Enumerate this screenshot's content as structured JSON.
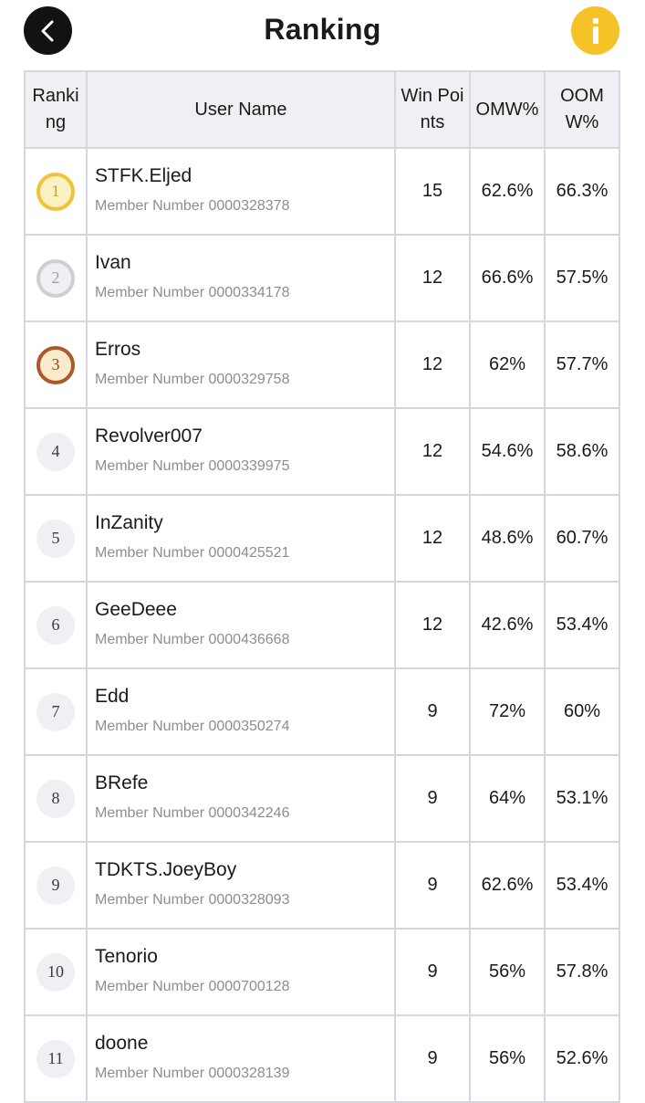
{
  "header": {
    "title": "Ranking",
    "back_icon": "chevron-left-icon",
    "info_icon": "info-icon",
    "info_color": "#f5c227"
  },
  "table": {
    "columns": [
      "Ranking",
      "User Name",
      "Win Points",
      "OMW%",
      "OOMW%"
    ],
    "rows": [
      {
        "rank": "1",
        "name": "STFK.Eljed",
        "member": "Member Number 0000328378",
        "win_points": "15",
        "omw": "62.6%",
        "oomw": "66.3%",
        "medal": "gold"
      },
      {
        "rank": "2",
        "name": "Ivan",
        "member": "Member Number 0000334178",
        "win_points": "12",
        "omw": "66.6%",
        "oomw": "57.5%",
        "medal": "silver"
      },
      {
        "rank": "3",
        "name": "Erros",
        "member": "Member Number 0000329758",
        "win_points": "12",
        "omw": "62%",
        "oomw": "57.7%",
        "medal": "bronze"
      },
      {
        "rank": "4",
        "name": "Revolver007",
        "member": "Member Number 0000339975",
        "win_points": "12",
        "omw": "54.6%",
        "oomw": "58.6%",
        "medal": "plain"
      },
      {
        "rank": "5",
        "name": "InZanity",
        "member": "Member Number 0000425521",
        "win_points": "12",
        "omw": "48.6%",
        "oomw": "60.7%",
        "medal": "plain"
      },
      {
        "rank": "6",
        "name": "GeeDeee",
        "member": "Member Number 0000436668",
        "win_points": "12",
        "omw": "42.6%",
        "oomw": "53.4%",
        "medal": "plain"
      },
      {
        "rank": "7",
        "name": "Edd",
        "member": "Member Number 0000350274",
        "win_points": "9",
        "omw": "72%",
        "oomw": "60%",
        "medal": "plain"
      },
      {
        "rank": "8",
        "name": "BRefe",
        "member": "Member Number 0000342246",
        "win_points": "9",
        "omw": "64%",
        "oomw": "53.1%",
        "medal": "plain"
      },
      {
        "rank": "9",
        "name": "TDKTS.JoeyBoy",
        "member": "Member Number 0000328093",
        "win_points": "9",
        "omw": "62.6%",
        "oomw": "53.4%",
        "medal": "plain"
      },
      {
        "rank": "10",
        "name": "Tenorio",
        "member": "Member Number 0000700128",
        "win_points": "9",
        "omw": "56%",
        "oomw": "57.8%",
        "medal": "plain"
      },
      {
        "rank": "11",
        "name": "doone",
        "member": "Member Number 0000328139",
        "win_points": "9",
        "omw": "56%",
        "oomw": "52.6%",
        "medal": "plain"
      }
    ]
  }
}
